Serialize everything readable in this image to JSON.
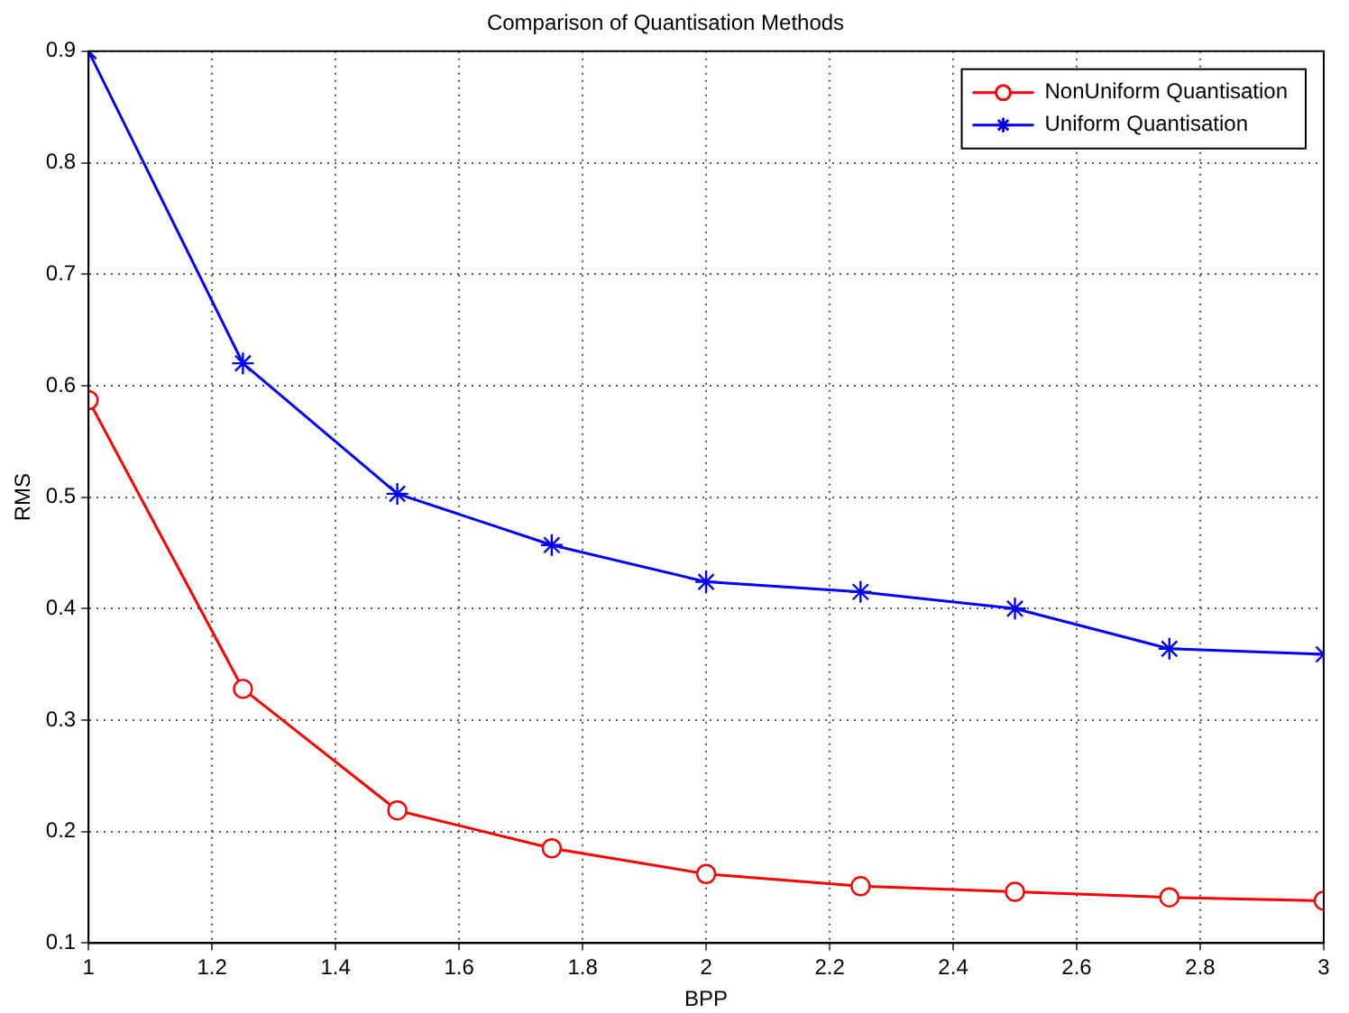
{
  "chart_data": {
    "type": "line",
    "title": "Comparison of Quantisation Methods",
    "xlabel": "BPP",
    "ylabel": "RMS",
    "x": [
      1,
      1.25,
      1.5,
      1.75,
      2,
      2.25,
      2.5,
      2.75,
      3
    ],
    "series": [
      {
        "name": "NonUniform Quantisation",
        "color": "#ff0000",
        "marker": "circle",
        "values": [
          0.587,
          0.328,
          0.219,
          0.185,
          0.162,
          0.151,
          0.146,
          0.141,
          0.138
        ]
      },
      {
        "name": "Uniform Quantisation",
        "color": "#0000ff",
        "marker": "cross",
        "values": [
          0.9,
          0.62,
          0.503,
          0.457,
          0.424,
          0.415,
          0.4,
          0.364,
          0.359
        ]
      }
    ],
    "xlim": [
      1,
      3
    ],
    "xticks": [
      1,
      1.2,
      1.4,
      1.6,
      1.8,
      2,
      2.2,
      2.4,
      2.6,
      2.8,
      3
    ],
    "ylim": [
      0.1,
      0.9
    ],
    "yticks": [
      0.1,
      0.2,
      0.3,
      0.4,
      0.5,
      0.6,
      0.7,
      0.8,
      0.9
    ],
    "grid": true,
    "legend": "top right",
    "line_style": "solid"
  }
}
